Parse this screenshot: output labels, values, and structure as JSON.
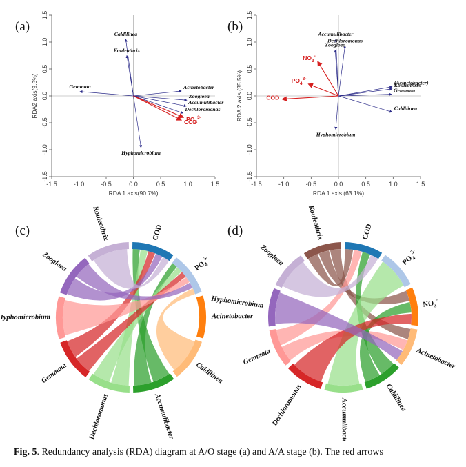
{
  "caption": {
    "label": "Fig. 5",
    "text": ". Redundancy analysis (RDA) diagram at A/O stage (a) and A/A stage (b). The red arrows"
  },
  "colors": {
    "species_arrow": "#2a2a88",
    "env_arrow": "#d62020"
  },
  "chart_data": [
    {
      "type": "scatter",
      "panel": "(a)",
      "title": "",
      "xlabel": "RDA 1 axis(90.7%)",
      "ylabel": "RDA2 axis(9.3%)",
      "xlim": [
        -1.5,
        1.5
      ],
      "ylim": [
        -1.5,
        1.5
      ],
      "xticks": [
        "-1.5",
        "-1.0",
        "-0.5",
        "0.0",
        "0.5",
        "1.0",
        "1.5"
      ],
      "yticks": [
        "1.5",
        "1.0",
        "0.5",
        "0.0",
        "-0.5",
        "-1.0",
        "-1.5"
      ],
      "species": [
        {
          "name": "Caldilinea",
          "x": -0.14,
          "y": 1.05
        },
        {
          "name": "Kouleothrix",
          "x": -0.12,
          "y": 0.75
        },
        {
          "name": "Gemmata",
          "x": -0.98,
          "y": 0.08
        },
        {
          "name": "Acinetobacter",
          "x": 0.88,
          "y": 0.09
        },
        {
          "name": "Zoogloea",
          "x": 0.98,
          "y": -0.08
        },
        {
          "name": "Accumulibacter",
          "x": 0.97,
          "y": -0.19
        },
        {
          "name": "Dechloromonas",
          "x": 0.91,
          "y": -0.32
        },
        {
          "name": "Hyphomicrobium",
          "x": 0.14,
          "y": -0.96
        }
      ],
      "env": [
        {
          "name": "PO4 3-",
          "x": 0.92,
          "y": -0.4
        },
        {
          "name": "COD",
          "x": 0.88,
          "y": -0.45
        }
      ]
    },
    {
      "type": "scatter",
      "panel": "(b)",
      "title": "",
      "xlabel": "RDA 1 axis (63.1%)",
      "ylabel": "RDA 2 axis (35.5%)",
      "xlim": [
        -1.5,
        1.5
      ],
      "ylim": [
        -1.5,
        1.5
      ],
      "xticks": [
        "-1.5",
        "-1.0",
        "-0.5",
        "0.0",
        "0.5",
        "1.0",
        "1.5"
      ],
      "yticks": [
        "1.5",
        "1.0",
        "0.5",
        "0.0",
        "-0.5",
        "-1.0",
        "-1.5"
      ],
      "species": [
        {
          "name": "Accumulibacter",
          "x": -0.05,
          "y": 1.05
        },
        {
          "name": "Dechloromonas",
          "x": 0.12,
          "y": 0.93
        },
        {
          "name": "Zoogloea",
          "x": -0.06,
          "y": 0.85
        },
        {
          "name": "(Acinetobacter)",
          "x": 0.98,
          "y": 0.17
        },
        {
          "name": "Kouleothrix",
          "x": 0.98,
          "y": 0.13
        },
        {
          "name": "Gemmata",
          "x": 0.97,
          "y": 0.03
        },
        {
          "name": "Caldilinea",
          "x": 0.98,
          "y": -0.3
        },
        {
          "name": "Hyphomicrobium",
          "x": -0.05,
          "y": -0.62
        }
      ],
      "env": [
        {
          "name": "NO3 -",
          "x": -0.38,
          "y": 0.64
        },
        {
          "name": "PO4 3-",
          "x": -0.55,
          "y": 0.22
        },
        {
          "name": "COD",
          "x": -1.03,
          "y": -0.06
        }
      ]
    },
    {
      "type": "chord",
      "panel": "(c)",
      "sectors": [
        {
          "name": "COD",
          "sub": "",
          "kind": "env",
          "color": "#1f77b4"
        },
        {
          "name": "PO",
          "sub": "4",
          "sup": "3-",
          "kind": "env",
          "color": "#aec7e8"
        },
        {
          "name": "Acinetobacter",
          "kind": "species",
          "color": "#ff7f0e"
        },
        {
          "name": "Caldilinea",
          "kind": "species",
          "color": "#ffbb78"
        },
        {
          "name": "Accumulibacter",
          "kind": "species",
          "color": "#2ca02c"
        },
        {
          "name": "Dechloromonas",
          "kind": "species",
          "color": "#98df8a"
        },
        {
          "name": "Gemmata",
          "kind": "species",
          "color": "#d62728"
        },
        {
          "name": "Hyphomicrobium",
          "kind": "species",
          "color": "#ff9896"
        },
        {
          "name": "Zoogloea",
          "kind": "species",
          "color": "#9467bd"
        },
        {
          "name": "Kouleothrix",
          "kind": "species",
          "color": "#c5b0d5"
        }
      ],
      "links": [
        {
          "from": "Accumulibacter",
          "to": "COD",
          "w": 1
        },
        {
          "from": "Accumulibacter",
          "to": "PO",
          "w": 1
        },
        {
          "from": "Dechloromonas",
          "to": "COD",
          "w": 1
        },
        {
          "from": "Dechloromonas",
          "to": "PO",
          "w": 1
        },
        {
          "from": "Gemmata",
          "to": "PO",
          "w": 1
        },
        {
          "from": "Gemmata",
          "to": "COD",
          "w": 1
        },
        {
          "from": "Hyphomicrobium",
          "to": "PO",
          "w": 1
        },
        {
          "from": "Zoogloea",
          "to": "COD",
          "w": 1
        },
        {
          "from": "Zoogloea",
          "to": "PO",
          "w": 1
        },
        {
          "from": "Kouleothrix",
          "to": "COD",
          "w": 1
        },
        {
          "from": "Caldilinea",
          "to": "PO",
          "w": 1
        }
      ]
    },
    {
      "type": "chord",
      "panel": "(d)",
      "sectors": [
        {
          "name": "COD",
          "sub": "",
          "kind": "env",
          "color": "#1f77b4"
        },
        {
          "name": "PO",
          "sub": "4",
          "sup": "3-",
          "kind": "env",
          "color": "#aec7e8"
        },
        {
          "name": "NO",
          "sub": "3",
          "sup": "-",
          "kind": "env",
          "color": "#ff7f0e"
        },
        {
          "name": "Acinetobacter",
          "kind": "species",
          "color": "#ffbb78"
        },
        {
          "name": "Caldilinea",
          "kind": "species",
          "color": "#2ca02c"
        },
        {
          "name": "Accumulibacter",
          "kind": "species",
          "color": "#98df8a"
        },
        {
          "name": "Dechloromonas",
          "kind": "species",
          "color": "#d62728"
        },
        {
          "name": "Gemmata",
          "kind": "species",
          "color": "#ff9896"
        },
        {
          "name": "Hyphomicrobium",
          "kind": "species",
          "color": "#9467bd"
        },
        {
          "name": "Zoogloea",
          "kind": "species",
          "color": "#c5b0d5"
        },
        {
          "name": "Kouleothrix",
          "kind": "species",
          "color": "#8c564b"
        }
      ],
      "links": [
        {
          "from": "Kouleothrix",
          "to": "COD",
          "w": 1
        },
        {
          "from": "Kouleothrix",
          "to": "NO",
          "w": 1
        },
        {
          "from": "Kouleothrix",
          "to": "Acinetobacter",
          "w": 1
        },
        {
          "from": "Gemmata",
          "to": "Acinetobacter",
          "w": 1
        },
        {
          "from": "Gemmata",
          "to": "COD",
          "w": 1
        },
        {
          "from": "Caldilinea",
          "to": "COD",
          "w": 1
        },
        {
          "from": "Caldilinea",
          "to": "NO",
          "w": 1
        },
        {
          "from": "Zoogloea",
          "to": "COD",
          "w": 1
        },
        {
          "from": "Accumulibacter",
          "to": "PO",
          "w": 1
        },
        {
          "from": "Dechloromonas",
          "to": "NO",
          "w": 1
        },
        {
          "from": "Hyphomicrobium",
          "to": "Acinetobacter",
          "w": 1
        }
      ]
    }
  ]
}
